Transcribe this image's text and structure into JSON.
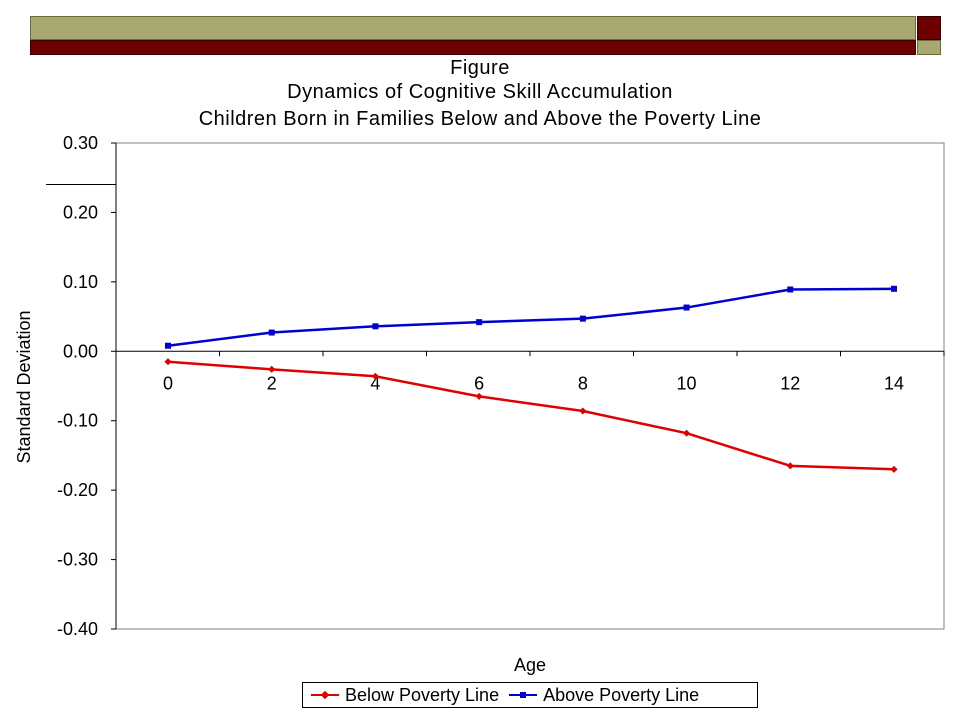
{
  "slide": {
    "colors": {
      "olive": "#a8a870",
      "maroon": "#6e0000"
    }
  },
  "chart_data": {
    "type": "line",
    "title_lines": [
      "Figure",
      "Dynamics of Cognitive Skill Accumulation",
      "Children Born in Families Below and Above the Poverty Line"
    ],
    "xlabel": "Age",
    "ylabel": "Standard Deviation",
    "x": [
      0,
      2,
      4,
      6,
      8,
      10,
      12,
      14
    ],
    "x_tick_labels": [
      "0",
      "2",
      "4",
      "6",
      "8",
      "10",
      "12",
      "14"
    ],
    "y_tick_labels": [
      "0.30",
      "0.20",
      "0.10",
      "0.00",
      "-0.10",
      "-0.20",
      "-0.30",
      "-0.40"
    ],
    "ylim": [
      -0.4,
      0.3
    ],
    "grid": false,
    "legend_position": "bottom",
    "series": [
      {
        "name": "Below Poverty Line",
        "color": "#e00000",
        "marker": "diamond",
        "values": [
          -0.015,
          -0.026,
          -0.036,
          -0.065,
          -0.086,
          -0.118,
          -0.165,
          -0.17
        ]
      },
      {
        "name": "Above Poverty Line",
        "color": "#0000d0",
        "marker": "square",
        "values": [
          0.008,
          0.027,
          0.036,
          0.042,
          0.047,
          0.063,
          0.089,
          0.09
        ]
      }
    ]
  }
}
